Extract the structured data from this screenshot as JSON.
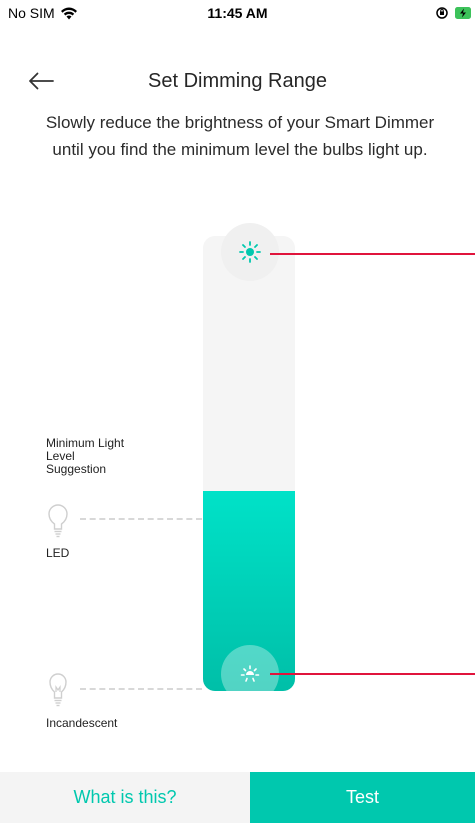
{
  "status_bar": {
    "carrier": "No SIM",
    "time": "11:45 AM",
    "icons": [
      "wifi-icon",
      "orientation-lock-icon",
      "battery-charging-icon"
    ]
  },
  "header": {
    "back_icon": "arrow-left-icon",
    "title": "Set Dimming Range"
  },
  "description": "Slowly reduce the brightness of your Smart Dimmer until you find the minimum level the bulbs light up.",
  "slider": {
    "fill_fraction": 0.44,
    "max_handle_icon": "sun-bright-icon",
    "min_handle_icon": "sun-dim-icon"
  },
  "suggestion": {
    "label": "Minimum Light Level Suggestion",
    "bulbs": [
      {
        "icon": "led-bulb-icon",
        "label": "LED"
      },
      {
        "icon": "incandescent-bulb-icon",
        "label": "Incandescent"
      }
    ]
  },
  "footer": {
    "what_label": "What is this?",
    "test_label": "Test"
  },
  "colors": {
    "accent": "#00c8ae",
    "fill_top": "#00e2c8",
    "marker": "#e0143c"
  }
}
